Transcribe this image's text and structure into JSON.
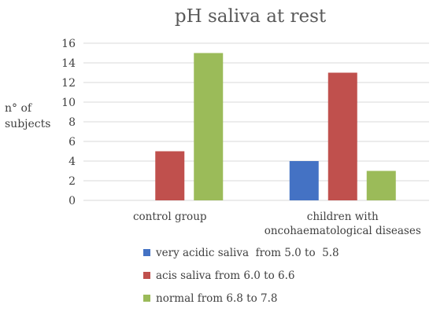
{
  "chart_data": {
    "type": "bar",
    "title": "pH saliva at rest",
    "ylabel_lines": [
      "n° of",
      "subjects"
    ],
    "xlabel": "",
    "categories": [
      [
        "control group"
      ],
      [
        "children with",
        "oncohaematological diseases"
      ]
    ],
    "ylim": [
      0,
      16
    ],
    "yticks": [
      0,
      2,
      4,
      6,
      8,
      10,
      12,
      14,
      16
    ],
    "grid": true,
    "legend_position": "bottom",
    "series": [
      {
        "name": "very acidic saliva  from 5.0 to  5.8",
        "color": "#4472c4",
        "values": [
          0,
          4
        ]
      },
      {
        "name": "acis saliva from 6.0 to 6.6",
        "color": "#c0504d",
        "values": [
          5,
          13
        ]
      },
      {
        "name": "normal from 6.8 to 7.8",
        "color": "#9bbb59",
        "values": [
          15,
          3
        ]
      }
    ]
  }
}
